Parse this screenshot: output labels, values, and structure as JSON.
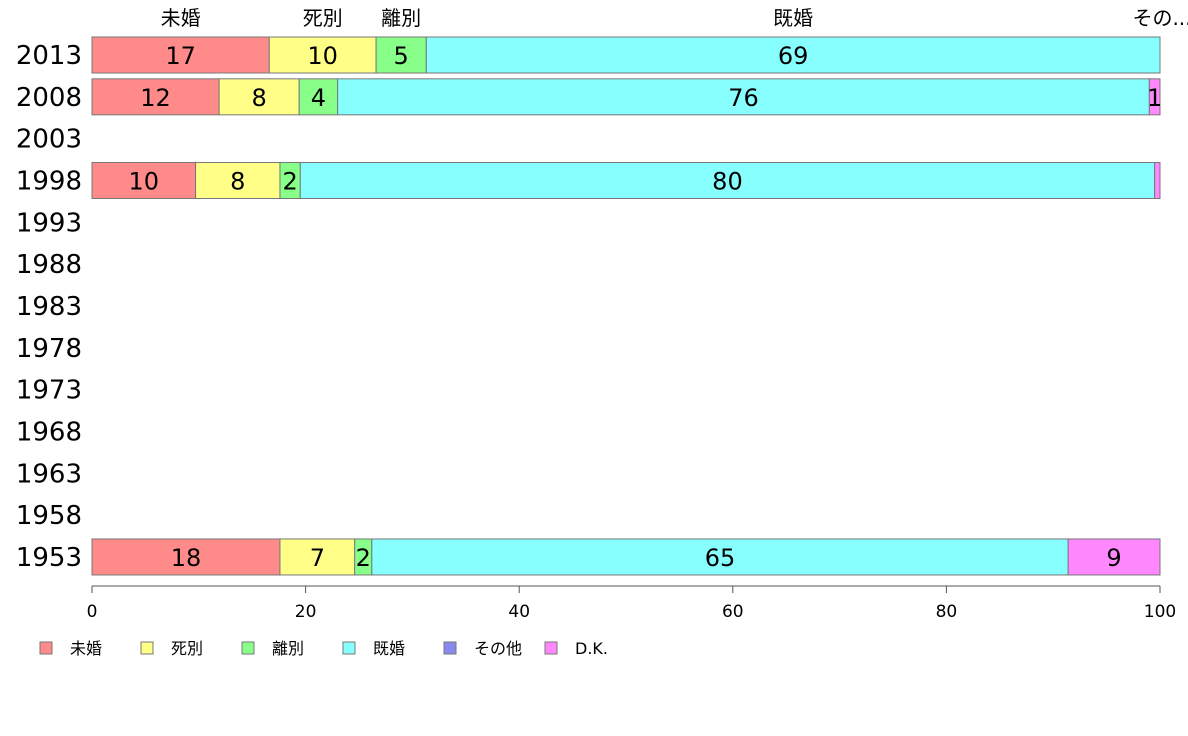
{
  "chart_data": {
    "type": "bar",
    "orientation": "horizontal",
    "stacked": true,
    "title": "",
    "xlabel": "",
    "ylabel": "",
    "xlim": [
      0,
      100
    ],
    "x_ticks": [
      0,
      20,
      40,
      60,
      80,
      100
    ],
    "categories": [
      "2013",
      "2008",
      "2003",
      "1998",
      "1993",
      "1988",
      "1983",
      "1978",
      "1973",
      "1968",
      "1963",
      "1958",
      "1953"
    ],
    "series": [
      {
        "name": "未婚",
        "color": "#ff8a8a",
        "values": [
          16.6,
          11.9,
          null,
          9.7,
          null,
          null,
          null,
          null,
          null,
          null,
          null,
          null,
          17.6
        ]
      },
      {
        "name": "死別",
        "color": "#ffff88",
        "values": [
          10.0,
          7.5,
          null,
          7.9,
          null,
          null,
          null,
          null,
          null,
          null,
          null,
          null,
          7.0
        ]
      },
      {
        "name": "離別",
        "color": "#88ff88",
        "values": [
          4.7,
          3.6,
          null,
          1.9,
          null,
          null,
          null,
          null,
          null,
          null,
          null,
          null,
          1.6
        ]
      },
      {
        "name": "既婚",
        "color": "#88ffff",
        "values": [
          68.7,
          76.0,
          null,
          80.0,
          null,
          null,
          null,
          null,
          null,
          null,
          null,
          null,
          65.2
        ]
      },
      {
        "name": "その他",
        "color": "#8888ee",
        "values": [
          0,
          0,
          null,
          0,
          null,
          null,
          null,
          null,
          null,
          null,
          null,
          null,
          0
        ]
      },
      {
        "name": "D.K.",
        "color": "#ff88ff",
        "values": [
          0,
          1.0,
          null,
          0.5,
          null,
          null,
          null,
          null,
          null,
          null,
          null,
          null,
          8.6
        ]
      }
    ],
    "data_labels": [
      [
        "17",
        "10",
        "5",
        "69",
        "",
        ""
      ],
      [
        "12",
        "8",
        "4",
        "76",
        "",
        "1"
      ],
      [
        "",
        "",
        "",
        "",
        "",
        ""
      ],
      [
        "10",
        "8",
        "2",
        "80",
        "",
        ""
      ],
      [
        "",
        "",
        "",
        "",
        "",
        ""
      ],
      [
        "",
        "",
        "",
        "",
        "",
        ""
      ],
      [
        "",
        "",
        "",
        "",
        "",
        ""
      ],
      [
        "",
        "",
        "",
        "",
        "",
        ""
      ],
      [
        "",
        "",
        "",
        "",
        "",
        ""
      ],
      [
        "",
        "",
        "",
        "",
        "",
        ""
      ],
      [
        "",
        "",
        "",
        "",
        "",
        ""
      ],
      [
        "",
        "",
        "",
        "",
        "",
        ""
      ],
      [
        "18",
        "7",
        "2",
        "65",
        "",
        "9"
      ]
    ],
    "top_labels": [
      "未婚",
      "死別",
      "離別",
      "既婚",
      "",
      "その..."
    ],
    "legend": {
      "position": "bottom-left",
      "entries": [
        "未婚",
        "死別",
        "離別",
        "既婚",
        "その他",
        "D.K."
      ]
    },
    "grid": false
  }
}
